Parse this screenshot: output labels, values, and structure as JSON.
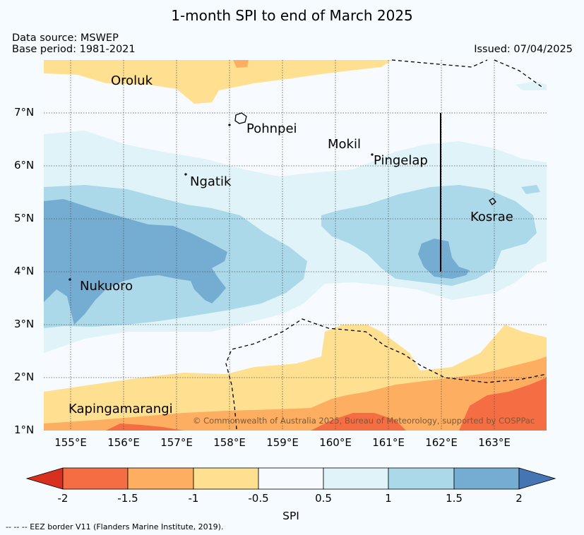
{
  "title": "1-month SPI to end of March 2025",
  "data_source": "Data source: MSWEP",
  "base_period": "Base period: 1981-2021",
  "issued": "Issued: 07/04/2025",
  "copyright": "© Commonwealth of Australia 2025, Bureau of Meteorology, supported by COSPPac",
  "footnote": "-- -- -- EEZ border V11 (Flanders Marine Institute, 2019).",
  "map": {
    "lat_ticks": [
      "7°N",
      "6°N",
      "5°N",
      "4°N",
      "3°N",
      "2°N",
      "1°N"
    ],
    "lon_ticks": [
      "155°E",
      "156°E",
      "157°E",
      "158°E",
      "159°E",
      "160°E",
      "161°E",
      "162°E",
      "163°E"
    ],
    "places": [
      "Oroluk",
      "Pohnpei",
      "Mokil",
      "Pingelap",
      "Ngatik",
      "Kosrae",
      "Nukuoro",
      "Kapingamarangi"
    ],
    "colors": {
      "lt_neg2": "#d7301f",
      "neg2_neg15": "#f46d43",
      "neg15_neg1": "#fdae61",
      "neg1_neg05": "#fee090",
      "neg05_05": "#f7fbff",
      "p05_1": "#e0f3f8",
      "p1_15": "#abd9e9",
      "p15_2": "#74add1",
      "gt2": "#4575b4"
    }
  },
  "colorbar": {
    "label": "SPI",
    "ticks": [
      "-2",
      "-1.5",
      "-1",
      "-0.5",
      "0.5",
      "1",
      "1.5",
      "2"
    ]
  }
}
